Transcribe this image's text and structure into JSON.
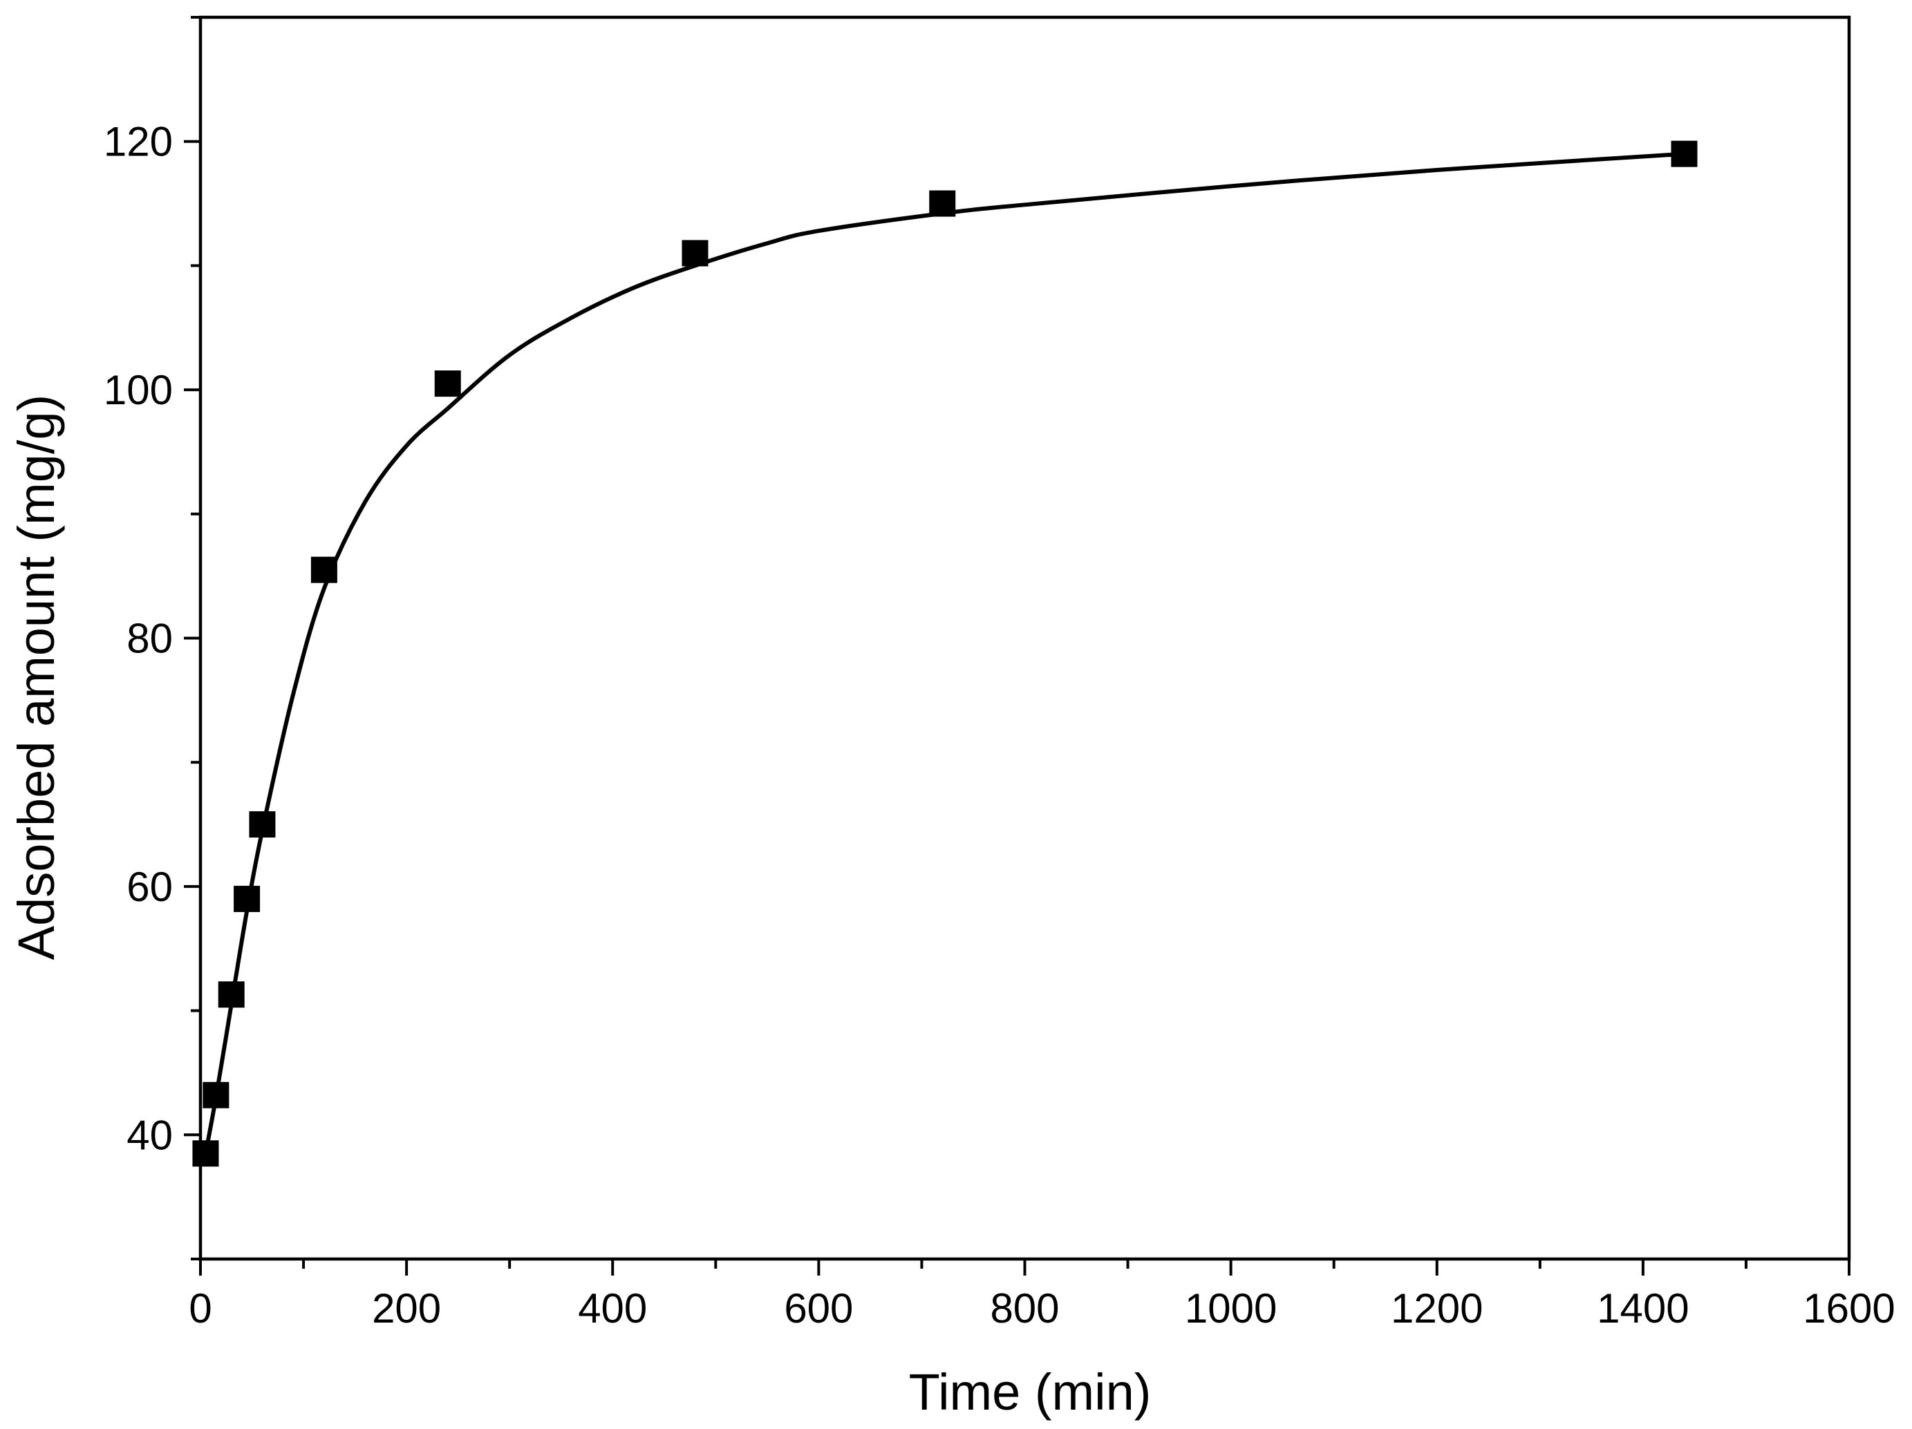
{
  "chart_data": {
    "type": "scatter",
    "title": "",
    "xlabel": "Time (min)",
    "ylabel": "Adsorbed amount (mg/g)",
    "xlim": [
      0,
      1600
    ],
    "ylim": [
      30,
      130
    ],
    "xticks": [
      0,
      200,
      400,
      600,
      800,
      1000,
      1200,
      1400,
      1600
    ],
    "xtick_labels": [
      "0",
      "200",
      "400",
      "600",
      "800",
      "1000",
      "1200",
      "1400",
      "1600"
    ],
    "yticks": [
      40,
      60,
      80,
      100,
      120
    ],
    "ytick_labels": [
      "40",
      "60",
      "80",
      "100",
      "120"
    ],
    "grid": false,
    "series": [
      {
        "marker": "square",
        "x": [
          5,
          15,
          30,
          45,
          60,
          120,
          240,
          480,
          720,
          1440
        ],
        "y": [
          38.5,
          43.2,
          51.3,
          59.0,
          65.0,
          85.5,
          100.5,
          111.0,
          115.0,
          119.0
        ]
      }
    ],
    "fit_curve": {
      "x": [
        5,
        15,
        30,
        45,
        60,
        90,
        120,
        160,
        200,
        240,
        300,
        360,
        420,
        480,
        550,
        600,
        720,
        800,
        1000,
        1200,
        1440
      ],
      "y": [
        38.5,
        43.0,
        50.5,
        58.0,
        64.5,
        75.5,
        84.0,
        91.0,
        95.5,
        98.5,
        102.8,
        105.8,
        108.2,
        110.0,
        111.8,
        112.8,
        114.2,
        114.9,
        116.4,
        117.7,
        119.0
      ]
    }
  }
}
